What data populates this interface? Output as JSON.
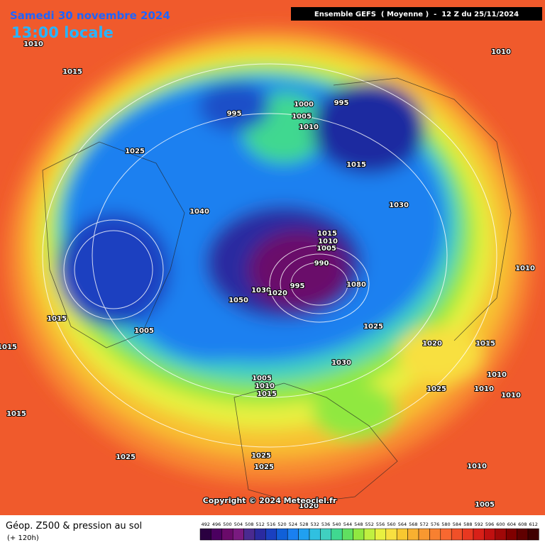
{
  "header": {
    "date": "Samedi 30 novembre 2024",
    "time": "13:00 locale",
    "model": "Ensemble GEFS  ( Moyenne )  -  12 Z du 25/11/2024"
  },
  "footer": {
    "title": "Géop. Z500 & pression au sol",
    "subtitle": "(+ 120h)",
    "copyright": "Copyright © 2024 Meteociel.fr"
  },
  "legend": {
    "values": [
      492,
      496,
      500,
      504,
      508,
      512,
      516,
      520,
      524,
      528,
      532,
      536,
      540,
      544,
      548,
      552,
      556,
      560,
      564,
      568,
      572,
      576,
      580,
      584,
      588,
      592,
      596,
      600,
      604,
      608,
      612
    ]
  },
  "isobar_labels": [
    "1010",
    "1015",
    "1010",
    "995",
    "1000",
    "995",
    "1005",
    "1010",
    "1025",
    "1015",
    "1030",
    "1040",
    "1015",
    "1010",
    "1005",
    "990",
    "1010",
    "1030",
    "995",
    "1020",
    "1050",
    "1080",
    "1015",
    "1005",
    "1025",
    "1020",
    "1015",
    "1015",
    "1030",
    "1010",
    "1025",
    "1010",
    "1010",
    "1005",
    "1010",
    "1015",
    "1015",
    "1025",
    "1025",
    "1025",
    "1010",
    "1020",
    "1005"
  ]
}
